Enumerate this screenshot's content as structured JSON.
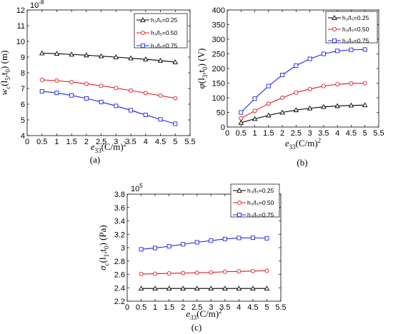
{
  "colors": {
    "series1": "#000000",
    "series2": "#e41a1c",
    "series3": "#1f24e6"
  },
  "legend_labels": [
    "h₃/l₅=0.25",
    "h₃/l₅=0.50",
    "h₃/l₅=0.75"
  ],
  "chart_data": [
    {
      "id": "a",
      "type": "line",
      "caption": "(a)",
      "exponent": "10",
      "exponent_power": "-8",
      "ylabel": {
        "main": "w",
        "sub1": "c",
        "mid": "(l",
        "sub2": "5",
        "sep": ",t",
        "sub3": "0",
        "tail": ") (m)"
      },
      "xlabel": {
        "main": "e",
        "sub": "33",
        "tail": "(C/m)",
        "sup": "2"
      },
      "xlim": [
        0,
        5.5
      ],
      "ylim": [
        4,
        12
      ],
      "xticks": [
        "0",
        "0.5",
        "1",
        "1.5",
        "2",
        "2.5",
        "3",
        "3.5",
        "4",
        "4.5",
        "5",
        "5.5"
      ],
      "yticks": [
        "4",
        "5",
        "6",
        "7",
        "8",
        "9",
        "10",
        "11",
        "12"
      ],
      "legend_position": "top-right",
      "x": [
        0.5,
        1,
        1.5,
        2,
        2.5,
        3,
        3.5,
        4,
        4.5,
        5
      ],
      "series": [
        {
          "name": "h₃/l₅=0.25",
          "marker": "triangle",
          "values": [
            9.25,
            9.22,
            9.17,
            9.12,
            9.06,
            9.0,
            8.93,
            8.86,
            8.78,
            8.68
          ]
        },
        {
          "name": "h₃/l₅=0.50",
          "marker": "circle",
          "values": [
            7.55,
            7.5,
            7.41,
            7.3,
            7.17,
            7.03,
            6.87,
            6.71,
            6.55,
            6.38
          ]
        },
        {
          "name": "h₃/l₅=0.75",
          "marker": "square",
          "values": [
            6.82,
            6.72,
            6.56,
            6.37,
            6.14,
            5.89,
            5.61,
            5.32,
            5.03,
            4.75
          ]
        }
      ]
    },
    {
      "id": "b",
      "type": "line",
      "caption": "(b)",
      "ylabel": {
        "main": "φ",
        "mid": "(l",
        "sub2": "3",
        "sep": ",t",
        "sub3": "0",
        "tail": ") (V)"
      },
      "xlabel": {
        "main": "e",
        "sub": "33",
        "tail": "(C/m)",
        "sup": "2"
      },
      "xlim": [
        0,
        5.5
      ],
      "ylim": [
        0,
        400
      ],
      "xticks": [
        "0",
        "0.5",
        "1",
        "1.5",
        "2",
        "2.5",
        "3",
        "3.5",
        "4",
        "4.5",
        "5",
        "5.5"
      ],
      "yticks": [
        "0",
        "50",
        "100",
        "150",
        "200",
        "250",
        "300",
        "350",
        "400"
      ],
      "legend_position": "top-right",
      "x": [
        0.5,
        1,
        1.5,
        2,
        2.5,
        3,
        3.5,
        4,
        4.5,
        5
      ],
      "series": [
        {
          "name": "h₃/l₅=0.25",
          "marker": "triangle",
          "values": [
            15,
            28,
            40,
            50,
            58,
            64,
            69,
            72,
            74,
            75
          ]
        },
        {
          "name": "h₃/l₅=0.50",
          "marker": "circle",
          "values": [
            30,
            55,
            80,
            100,
            118,
            130,
            140,
            146,
            149,
            150
          ]
        },
        {
          "name": "h₃/l₅=0.75",
          "marker": "square",
          "values": [
            50,
            97,
            140,
            178,
            210,
            233,
            250,
            260,
            264,
            265
          ]
        }
      ]
    },
    {
      "id": "c",
      "type": "line",
      "caption": "(c)",
      "exponent": "10",
      "exponent_power": "5",
      "ylabel": {
        "main": "σ",
        "sub1": "c",
        "mid": "(l",
        "sub2": "1",
        "sep": ",t",
        "sub3": "0",
        "tail": ") (Pa)"
      },
      "xlabel": {
        "main": "e",
        "sub": "33",
        "tail": "(C/m)",
        "sup": "2"
      },
      "xlim": [
        0,
        5.5
      ],
      "ylim": [
        2.2,
        3.8
      ],
      "xticks": [
        "0",
        "0.5",
        "1",
        "1.5",
        "2",
        "2.5",
        "3",
        "3.5",
        "4",
        "4.5",
        "5",
        "5.5"
      ],
      "yticks": [
        "2.2",
        "2.4",
        "2.6",
        "2.8",
        "3",
        "3.2",
        "3.4",
        "3.6",
        "3.8"
      ],
      "legend_position": "top-right",
      "x": [
        0.5,
        1,
        1.5,
        2,
        2.5,
        3,
        3.5,
        4,
        4.5,
        5
      ],
      "series": [
        {
          "name": "h₃/l₅=0.25",
          "marker": "triangle",
          "values": [
            2.39,
            2.39,
            2.39,
            2.39,
            2.39,
            2.39,
            2.39,
            2.39,
            2.39,
            2.39
          ]
        },
        {
          "name": "h₃/l₅=0.50",
          "marker": "circle",
          "values": [
            2.605,
            2.61,
            2.615,
            2.62,
            2.625,
            2.63,
            2.64,
            2.645,
            2.65,
            2.655
          ]
        },
        {
          "name": "h₃/l₅=0.75",
          "marker": "square",
          "values": [
            2.975,
            2.995,
            3.02,
            3.05,
            3.08,
            3.105,
            3.13,
            3.145,
            3.148,
            3.14
          ]
        }
      ]
    }
  ]
}
